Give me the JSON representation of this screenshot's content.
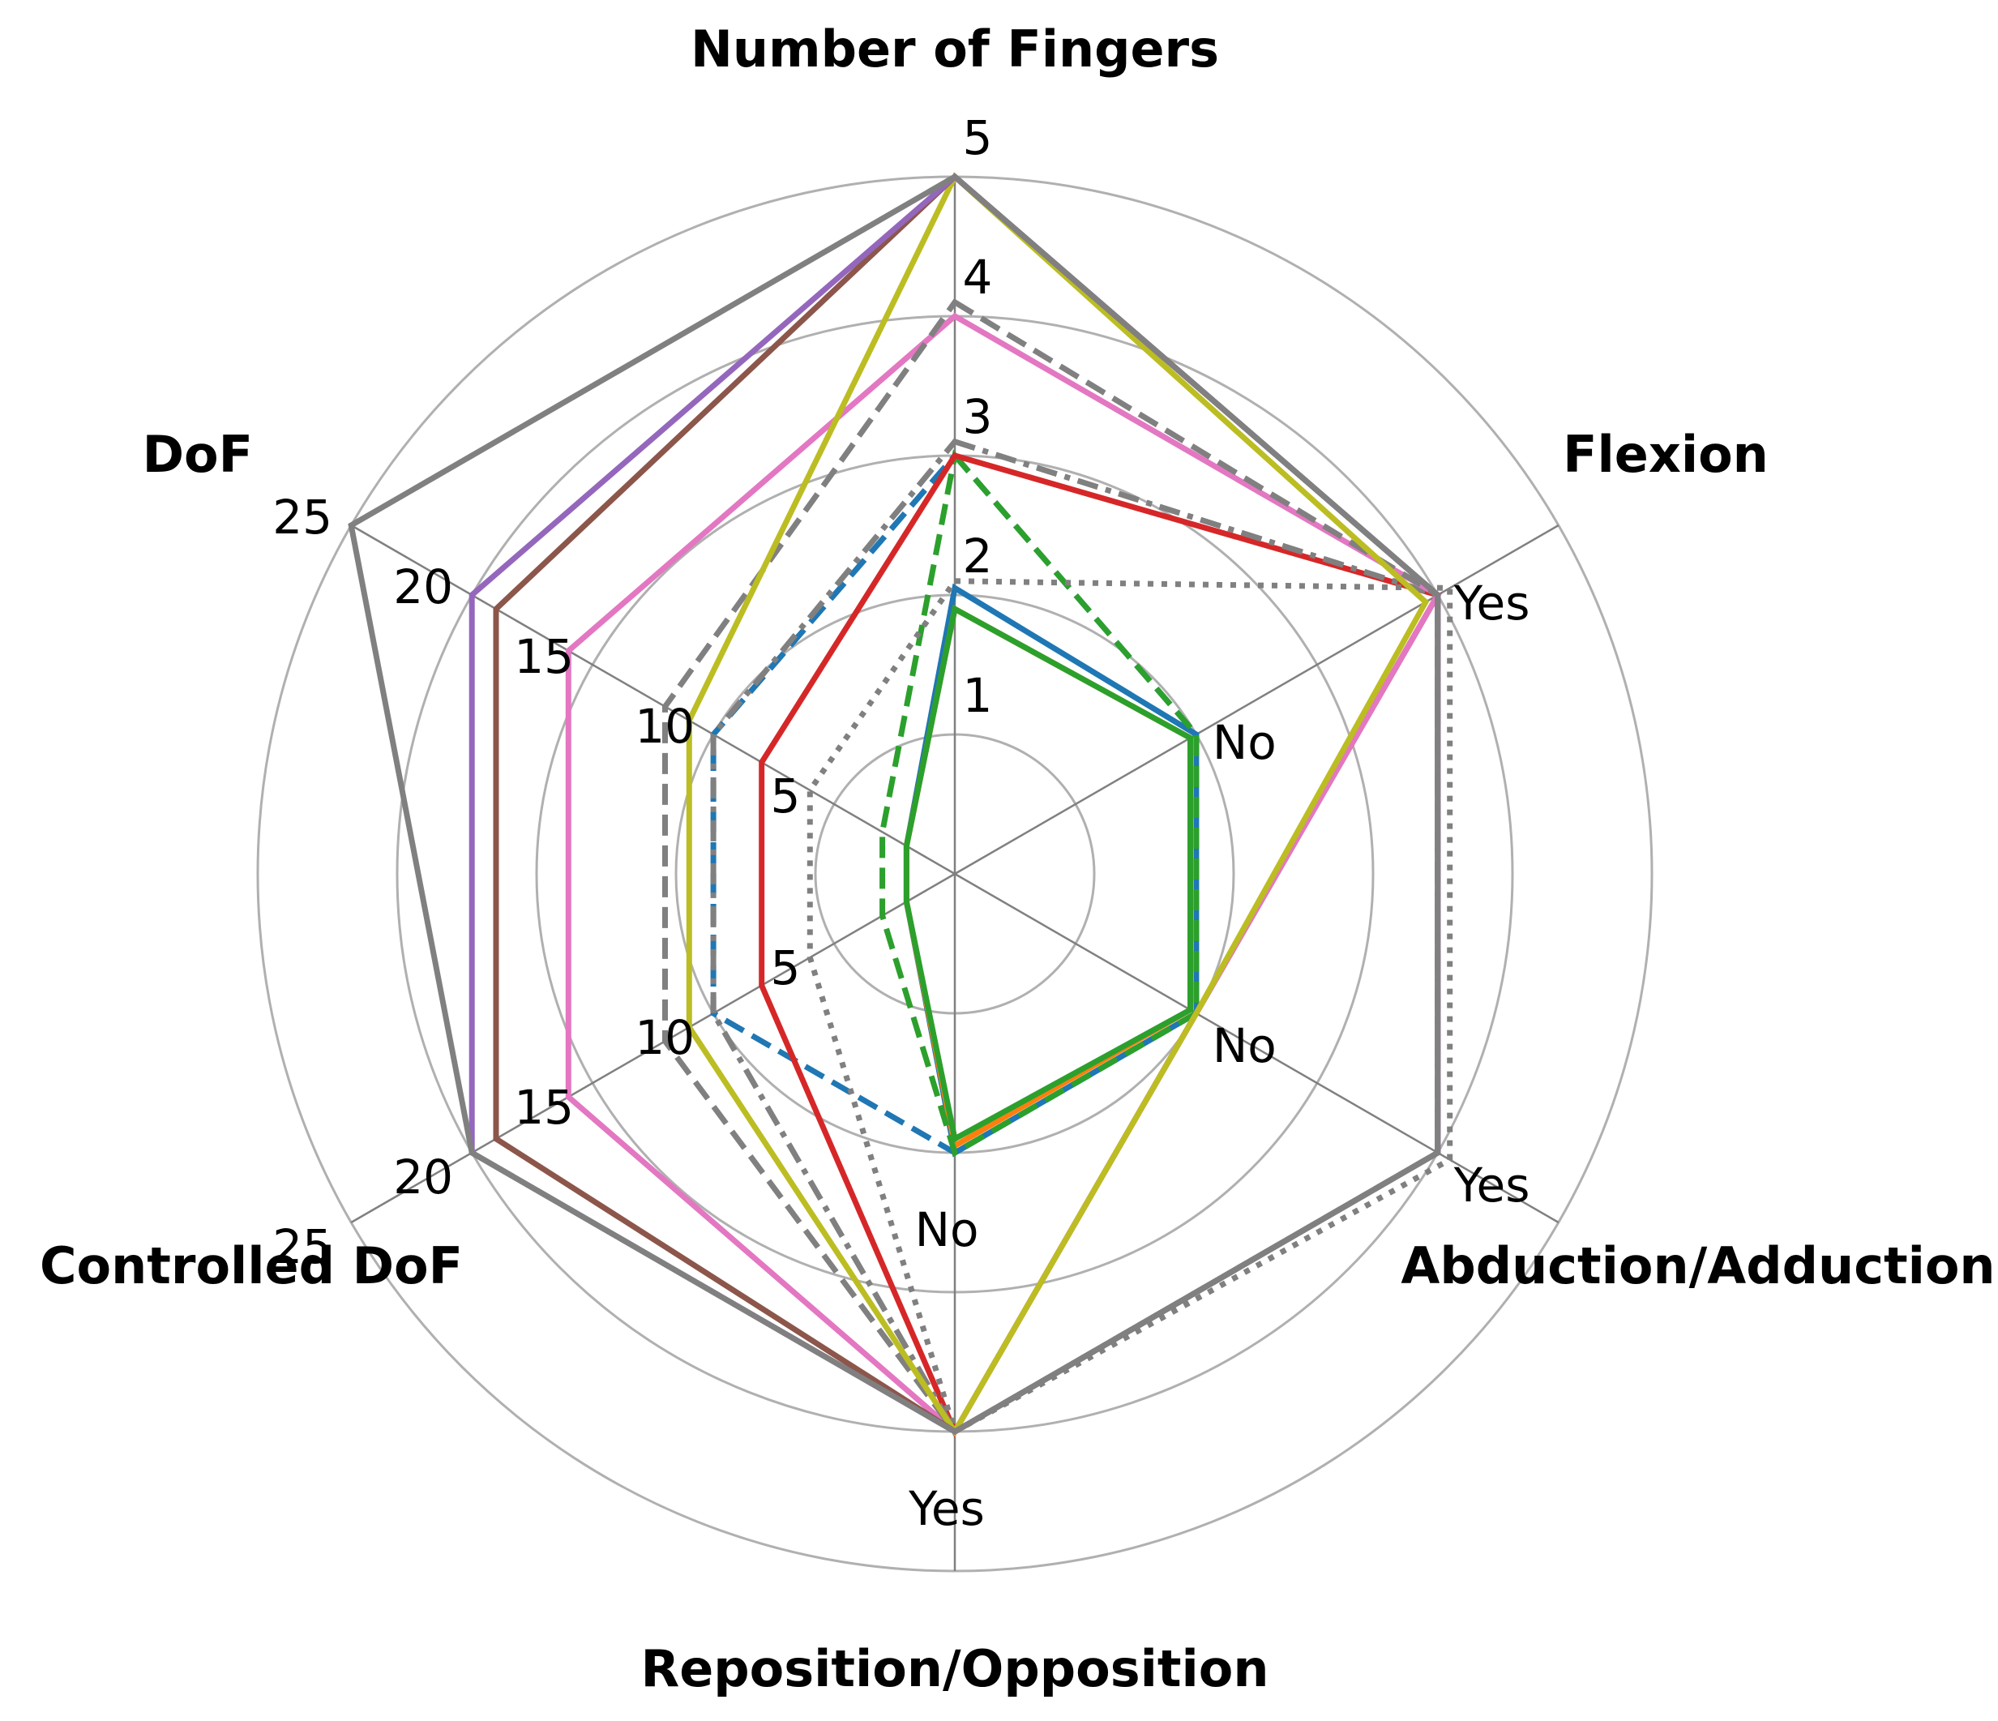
{
  "chart_data": {
    "type": "radar",
    "title": "",
    "axes": [
      {
        "label": "Number of Fingers",
        "min": 0,
        "max": 5,
        "ticks": [
          {
            "value": 1,
            "label": "1"
          },
          {
            "value": 2,
            "label": "2"
          },
          {
            "value": 3,
            "label": "3"
          },
          {
            "value": 4,
            "label": "4"
          },
          {
            "value": 5,
            "label": "5"
          }
        ]
      },
      {
        "label": "Flexion",
        "min": 0,
        "max": 5,
        "ticks": [
          {
            "value": 2,
            "label": "No"
          },
          {
            "value": 4,
            "label": "Yes"
          }
        ]
      },
      {
        "label": "Abduction/Adduction",
        "min": 0,
        "max": 5,
        "ticks": [
          {
            "value": 2,
            "label": "No"
          },
          {
            "value": 4,
            "label": "Yes"
          }
        ]
      },
      {
        "label": "Reposition/Opposition",
        "min": 0,
        "max": 5,
        "ticks": [
          {
            "value": 2,
            "label": "No"
          },
          {
            "value": 4,
            "label": "Yes"
          }
        ]
      },
      {
        "label": "Controlled DoF",
        "min": 0,
        "max": 25,
        "ticks": [
          {
            "value": 5,
            "label": "5"
          },
          {
            "value": 10,
            "label": "10"
          },
          {
            "value": 15,
            "label": "15"
          },
          {
            "value": 20,
            "label": "20"
          },
          {
            "value": 25,
            "label": "25"
          }
        ]
      },
      {
        "label": "DoF",
        "min": 0,
        "max": 25,
        "ticks": [
          {
            "value": 5,
            "label": "5"
          },
          {
            "value": 10,
            "label": "10"
          },
          {
            "value": 15,
            "label": "15"
          },
          {
            "value": 20,
            "label": "20"
          },
          {
            "value": 25,
            "label": "25"
          }
        ]
      }
    ],
    "series": [
      {
        "color": "#1f77b4",
        "dash": "solid",
        "values": [
          2.05,
          2.0,
          2.0,
          2.0,
          2.0,
          2.0
        ]
      },
      {
        "color": "#ff7f0e",
        "dash": "solid",
        "values": [
          1.9,
          1.95,
          1.95,
          1.95,
          2.0,
          2.0
        ]
      },
      {
        "color": "#2ca02c",
        "dash": "solid",
        "values": [
          1.9,
          1.95,
          1.95,
          1.9,
          2.0,
          2.0
        ]
      },
      {
        "color": "#1f77b4",
        "dash": "dashed",
        "values": [
          3.0,
          2.0,
          2.0,
          2.0,
          10,
          10
        ]
      },
      {
        "color": "#2ca02c",
        "dash": "dashed",
        "values": [
          3.0,
          2.0,
          2.0,
          2.0,
          3,
          3
        ]
      },
      {
        "color": "#d62728",
        "dash": "solid",
        "values": [
          3.0,
          4.0,
          2.0,
          4.0,
          8,
          8
        ]
      },
      {
        "color": "#808080",
        "dash": "dashdot",
        "values": [
          3.1,
          4.0,
          4.0,
          4.0,
          10,
          10
        ]
      },
      {
        "color": "#808080",
        "dash": "dotted",
        "values": [
          2.1,
          4.1,
          4.1,
          4.0,
          6,
          6
        ]
      },
      {
        "color": "#e377c2",
        "dash": "solid",
        "values": [
          4.0,
          4.0,
          2.0,
          4.0,
          16,
          16
        ]
      },
      {
        "color": "#808080",
        "dash": "dashed",
        "values": [
          4.1,
          4.0,
          4.0,
          4.0,
          12,
          12
        ]
      },
      {
        "color": "#bcbd22",
        "dash": "solid",
        "values": [
          5.0,
          3.9,
          2.0,
          4.0,
          11,
          11
        ]
      },
      {
        "color": "#8c564b",
        "dash": "solid",
        "values": [
          5.0,
          4.0,
          4.0,
          4.0,
          19,
          19
        ]
      },
      {
        "color": "#9467bd",
        "dash": "solid",
        "values": [
          5.0,
          4.0,
          4.0,
          4.0,
          20,
          20
        ]
      },
      {
        "color": "#808080",
        "dash": "solid",
        "values": [
          5.0,
          4.0,
          4.0,
          4.0,
          20,
          25
        ]
      }
    ],
    "grid": true,
    "legend": "none"
  }
}
